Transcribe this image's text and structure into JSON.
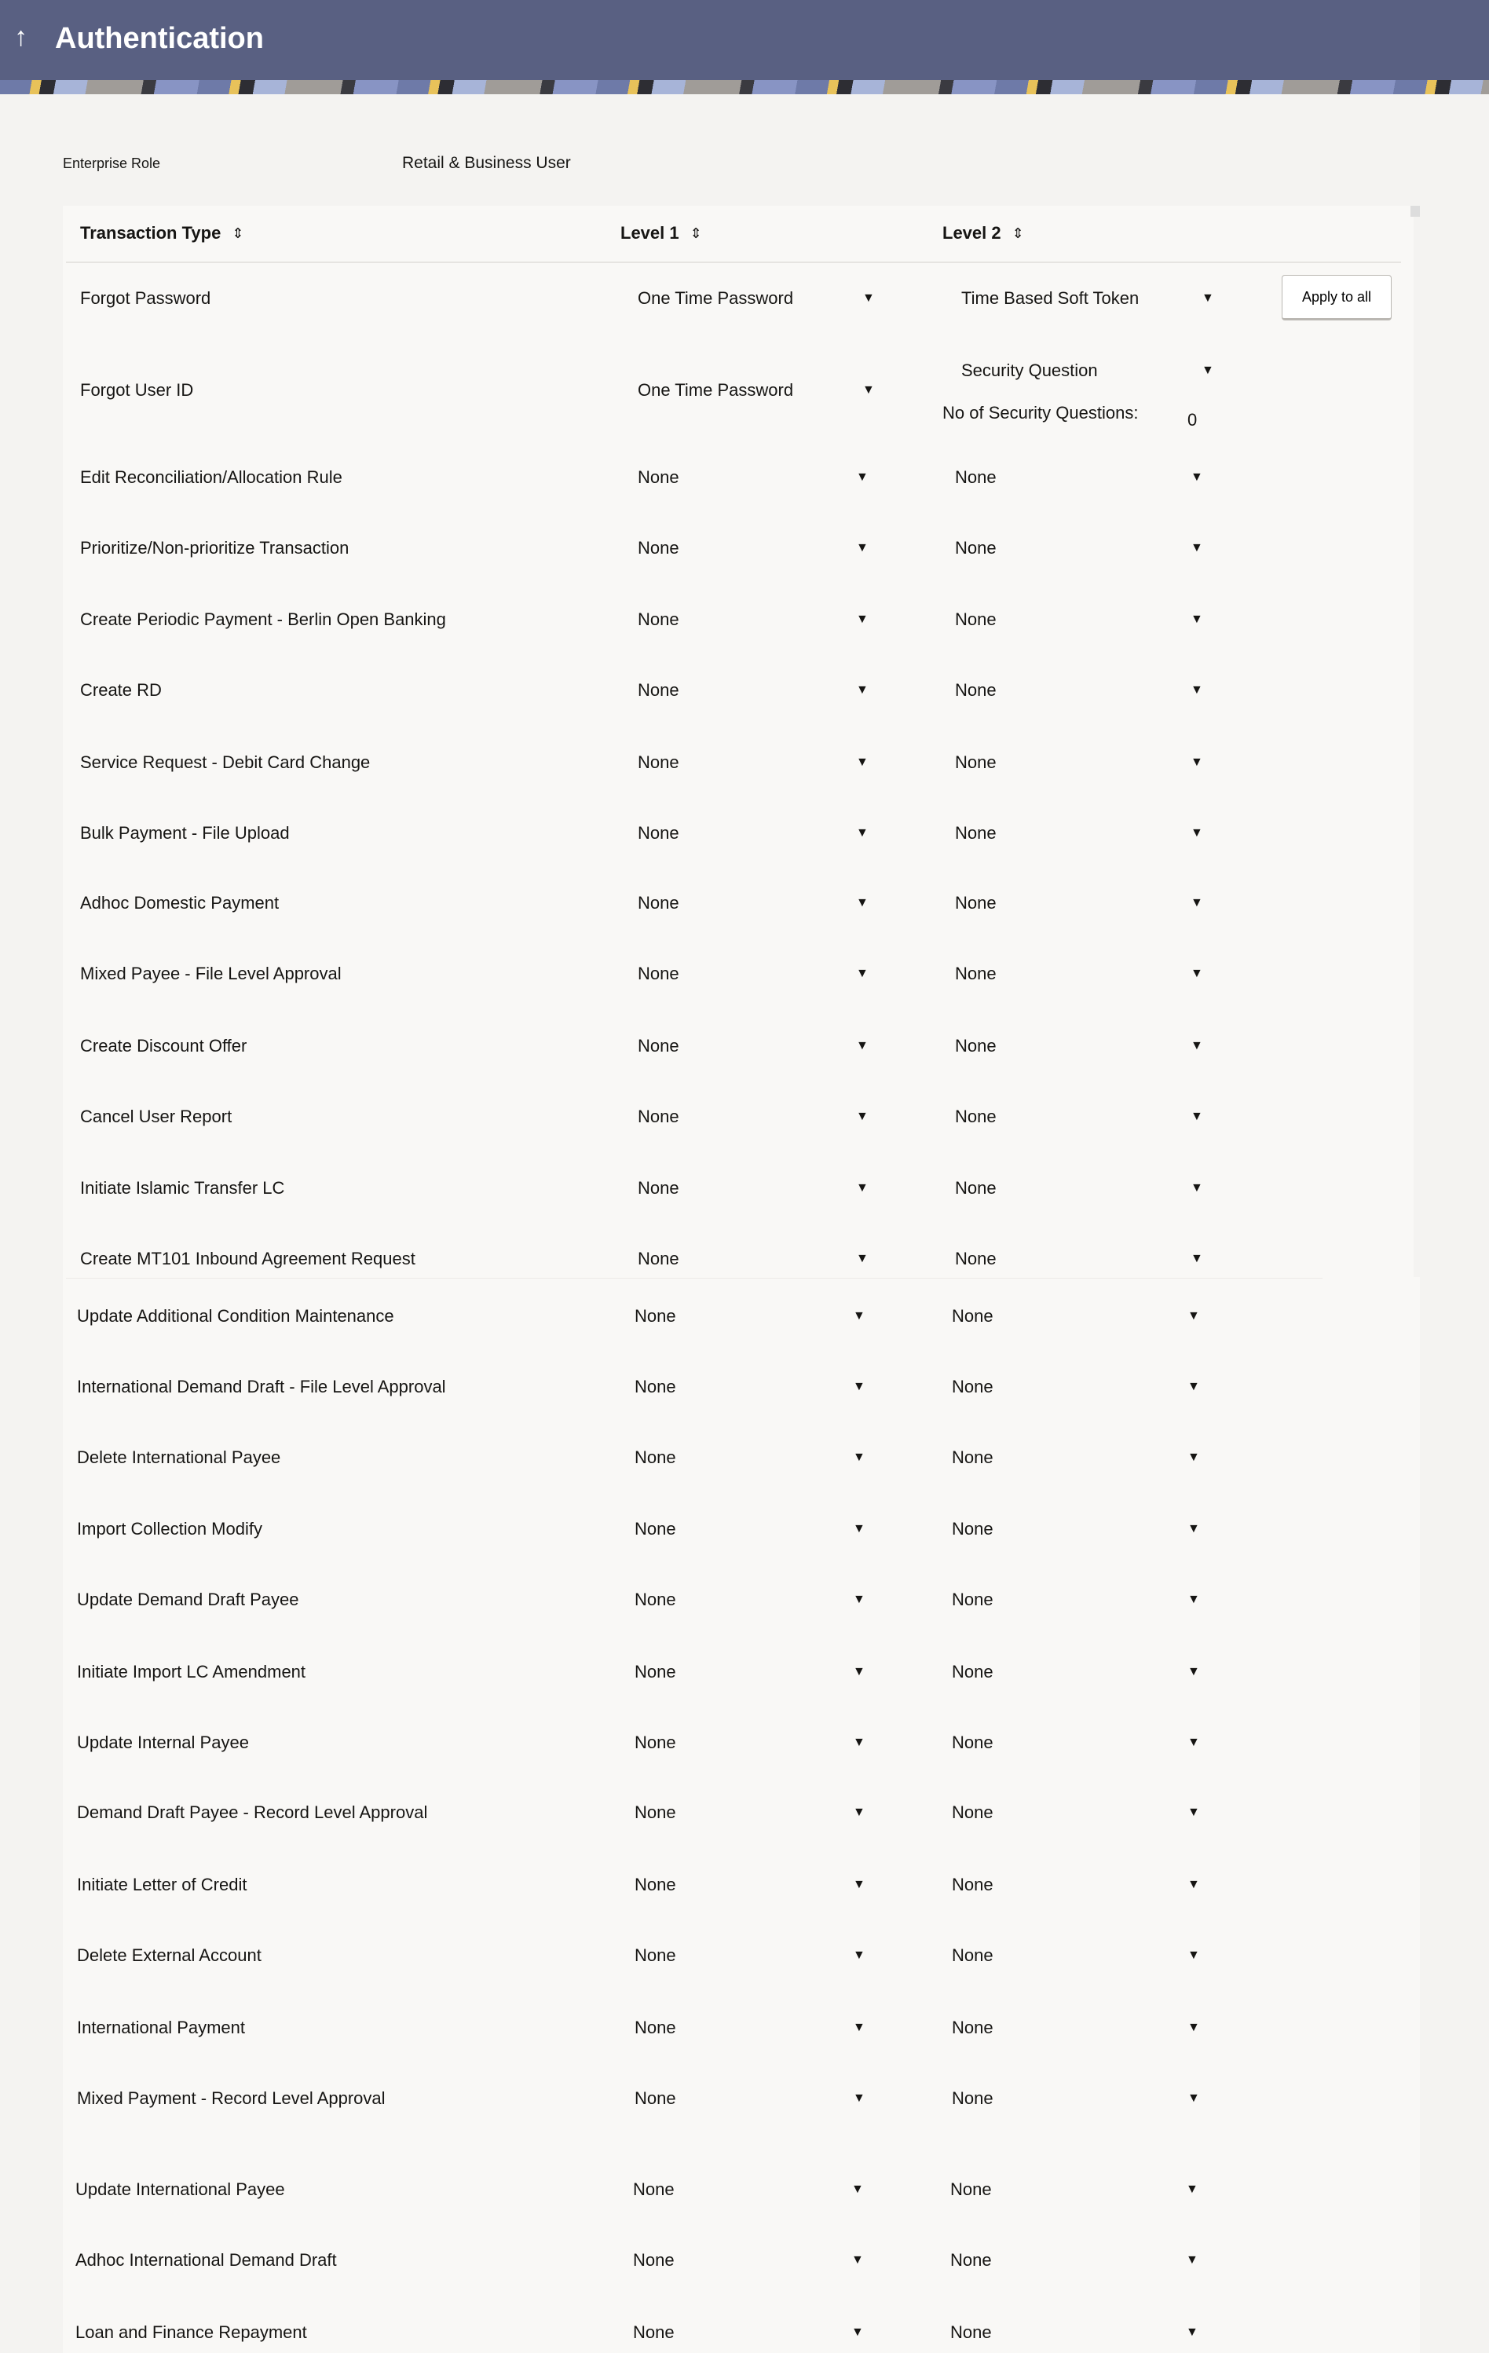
{
  "header": {
    "title": "Authentication",
    "back_icon": "arrow-up-icon"
  },
  "enterprise_role": {
    "label": "Enterprise Role",
    "value": "Retail & Business User"
  },
  "table": {
    "columns": [
      "Transaction Type",
      "Level 1",
      "Level 2"
    ],
    "apply_all_label": "Apply to all",
    "security_questions_label": "No of Security Questions:",
    "security_questions_value": "0",
    "rows": [
      {
        "type": "Forgot Password",
        "level1": "One Time Password",
        "level2": "Time Based Soft Token"
      },
      {
        "type": "Forgot User ID",
        "level1": "One Time Password",
        "level2": "Security Question"
      },
      {
        "type": "Edit Reconciliation/Allocation Rule",
        "level1": "None",
        "level2": "None"
      },
      {
        "type": "Prioritize/Non-prioritize Transaction",
        "level1": "None",
        "level2": "None"
      },
      {
        "type": "Create Periodic Payment - Berlin Open Banking",
        "level1": "None",
        "level2": "None"
      },
      {
        "type": "Create RD",
        "level1": "None",
        "level2": "None"
      },
      {
        "type": "Service Request - Debit Card Change",
        "level1": "None",
        "level2": "None"
      },
      {
        "type": "Bulk Payment - File Upload",
        "level1": "None",
        "level2": "None"
      },
      {
        "type": "Adhoc Domestic Payment",
        "level1": "None",
        "level2": "None"
      },
      {
        "type": "Mixed Payee - File Level Approval",
        "level1": "None",
        "level2": "None"
      },
      {
        "type": "Create Discount Offer",
        "level1": "None",
        "level2": "None"
      },
      {
        "type": "Cancel User Report",
        "level1": "None",
        "level2": "None"
      },
      {
        "type": "Initiate Islamic Transfer LC",
        "level1": "None",
        "level2": "None"
      },
      {
        "type": "Create MT101 Inbound Agreement Request",
        "level1": "None",
        "level2": "None"
      },
      {
        "type": "Update Additional Condition Maintenance",
        "level1": "None",
        "level2": "None"
      },
      {
        "type": "International Demand Draft - File Level Approval",
        "level1": "None",
        "level2": "None"
      },
      {
        "type": "Delete International Payee",
        "level1": "None",
        "level2": "None"
      },
      {
        "type": "Import Collection Modify",
        "level1": "None",
        "level2": "None"
      },
      {
        "type": "Update Demand Draft Payee",
        "level1": "None",
        "level2": "None"
      },
      {
        "type": "Initiate Import LC Amendment",
        "level1": "None",
        "level2": "None"
      },
      {
        "type": "Update Internal Payee",
        "level1": "None",
        "level2": "None"
      },
      {
        "type": "Demand Draft Payee - Record Level Approval",
        "level1": "None",
        "level2": "None"
      },
      {
        "type": "Initiate Letter of Credit",
        "level1": "None",
        "level2": "None"
      },
      {
        "type": "Delete External Account",
        "level1": "None",
        "level2": "None"
      },
      {
        "type": "International Payment",
        "level1": "None",
        "level2": "None"
      },
      {
        "type": "Mixed Payment - Record Level Approval",
        "level1": "None",
        "level2": "None"
      },
      {
        "type": "Update International Payee",
        "level1": "None",
        "level2": "None"
      },
      {
        "type": "Adhoc International Demand Draft",
        "level1": "None",
        "level2": "None"
      },
      {
        "type": "Loan and Finance Repayment",
        "level1": "None",
        "level2": "None"
      }
    ]
  }
}
